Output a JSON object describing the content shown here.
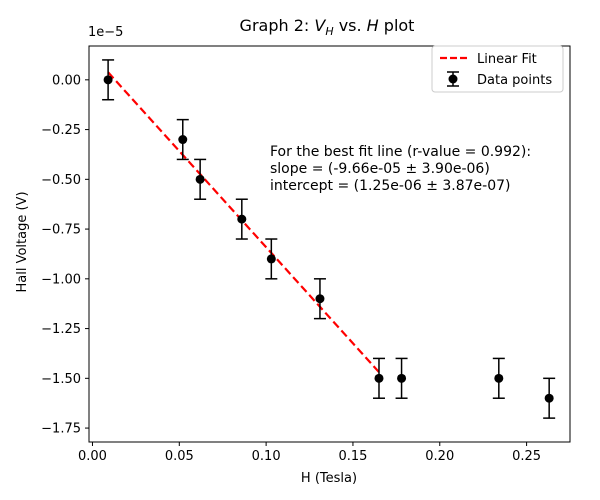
{
  "chart_data": {
    "type": "scatter",
    "title_prefix": "Graph 2: ",
    "title_v": "V",
    "title_v_sub": "H",
    "title_mid": " vs. ",
    "title_h": "H",
    "title_suffix": " plot",
    "xlabel": "H (Tesla)",
    "ylabel": "Hall Voltage (V)",
    "y_offset_label": "1e−5",
    "xlim": [
      -0.002,
      0.275
    ],
    "ylim": [
      -1.82,
      0.17
    ],
    "y_scale_exponent": -5,
    "x_ticks": [
      0.0,
      0.05,
      0.1,
      0.15,
      0.2,
      0.25
    ],
    "x_tick_labels": [
      "0.00",
      "0.05",
      "0.10",
      "0.15",
      "0.20",
      "0.25"
    ],
    "y_ticks": [
      0.0,
      -0.25,
      -0.5,
      -0.75,
      -1.0,
      -1.25,
      -1.5,
      -1.75
    ],
    "y_tick_labels": [
      "0.00",
      "−0.25",
      "−0.50",
      "−0.75",
      "−1.00",
      "−1.25",
      "−1.50",
      "−1.75"
    ],
    "grid": false,
    "legend_position": "top-right",
    "series": [
      {
        "name": "Data points",
        "kind": "errorbar",
        "color": "#000000",
        "x": [
          0.009,
          0.052,
          0.062,
          0.086,
          0.103,
          0.131,
          0.165,
          0.178,
          0.234,
          0.263
        ],
        "y": [
          0.0,
          -0.3,
          -0.5,
          -0.7,
          -0.9,
          -1.1,
          -1.5,
          -1.5,
          -1.5,
          -1.6
        ],
        "yerr": [
          0.1,
          0.1,
          0.1,
          0.1,
          0.1,
          0.1,
          0.1,
          0.1,
          0.1,
          0.1
        ]
      },
      {
        "name": "Linear Fit",
        "kind": "line",
        "color": "#ff0000",
        "dash": "dashed",
        "x": [
          0.009,
          0.165
        ],
        "y": [
          0.038,
          -1.469
        ]
      }
    ],
    "annotation": [
      "For the best fit line (r-value = 0.992):",
      "slope = (-9.66e-05 ± 3.90e-06)",
      "intercept = (1.25e-06 ± 3.87e-07)"
    ]
  }
}
